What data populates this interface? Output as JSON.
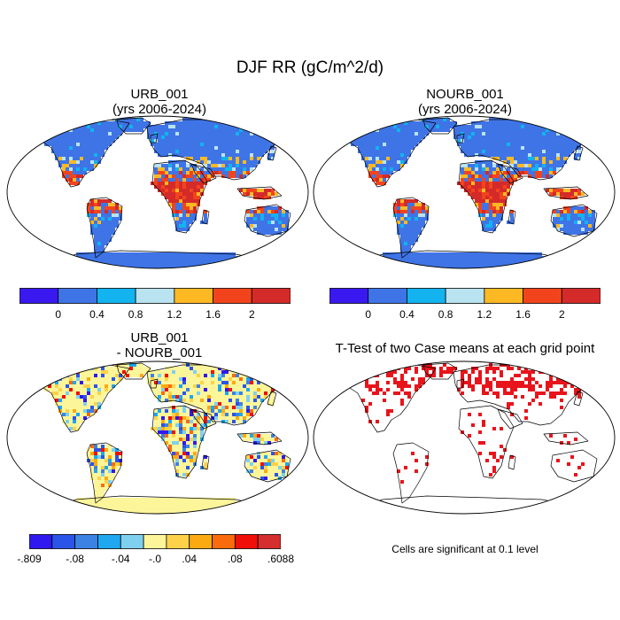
{
  "title": "DJF RR (gC/m^2/d)",
  "panels": [
    {
      "id": "urb",
      "title_line1": "URB_001",
      "title_line2": "(yrs 2006-2024)",
      "field": "rr"
    },
    {
      "id": "nourb",
      "title_line1": "NOURB_001",
      "title_line2": "(yrs 2006-2024)",
      "field": "rr"
    },
    {
      "id": "diff",
      "title_line1": "URB_001",
      "title_line2": "- NOURB_001",
      "field": "diff"
    },
    {
      "id": "ttest",
      "title_line1": "T-Test of two Case means at each grid point",
      "title_line2": "",
      "field": "sig"
    }
  ],
  "colorbar_top": {
    "colors": [
      "#3a19f0",
      "#3f74e6",
      "#12b3ef",
      "#b9e3f0",
      "#fcb923",
      "#f2441c",
      "#d42a2a"
    ],
    "labels": [
      "0",
      "0.4",
      "0.8",
      "1.2",
      "1.6",
      "2"
    ]
  },
  "colorbar_diff": {
    "colors": [
      "#3019ee",
      "#2b54e8",
      "#3c82e5",
      "#1fa7ef",
      "#7fd0ee",
      "#fdf59a",
      "#fdd24a",
      "#fcaa12",
      "#f96b0c",
      "#f01009",
      "#d42e2e"
    ],
    "labels": [
      "-.809",
      "-.08",
      "-.04",
      "-.0",
      ".04",
      ".08",
      ".6088"
    ]
  },
  "colors": {
    "land_base": "#3b73e4",
    "diff_base": "#fdf29a",
    "significance": "#e8141c",
    "ocean": "#ffffff"
  },
  "significance_note": "Cells are significant at 0.1 level"
}
